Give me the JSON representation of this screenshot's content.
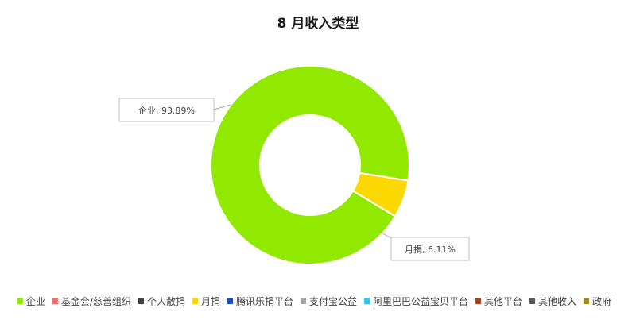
{
  "chart_data": {
    "type": "pie",
    "variant": "donut",
    "title": "8 月收入类型",
    "categories": [
      "企业",
      "基金会/慈善组织",
      "个人散捐",
      "月捐",
      "腾讯乐捐平台",
      "支付宝公益",
      "阿里巴巴公益宝贝平台",
      "其他平台",
      "其他收入",
      "政府"
    ],
    "values": [
      93.89,
      0,
      0,
      6.11,
      0,
      0,
      0,
      0,
      0,
      0
    ],
    "colors": [
      "#92e900",
      "#f26c6c",
      "#404040",
      "#fbd800",
      "#1f4fc4",
      "#a6a6a6",
      "#33c4ef",
      "#a0441c",
      "#595959",
      "#a68a1c"
    ],
    "data_labels": [
      {
        "text": "企业, 93.89%"
      },
      {
        "text": "月捐, 6.11%"
      }
    ],
    "legend_position": "bottom"
  }
}
